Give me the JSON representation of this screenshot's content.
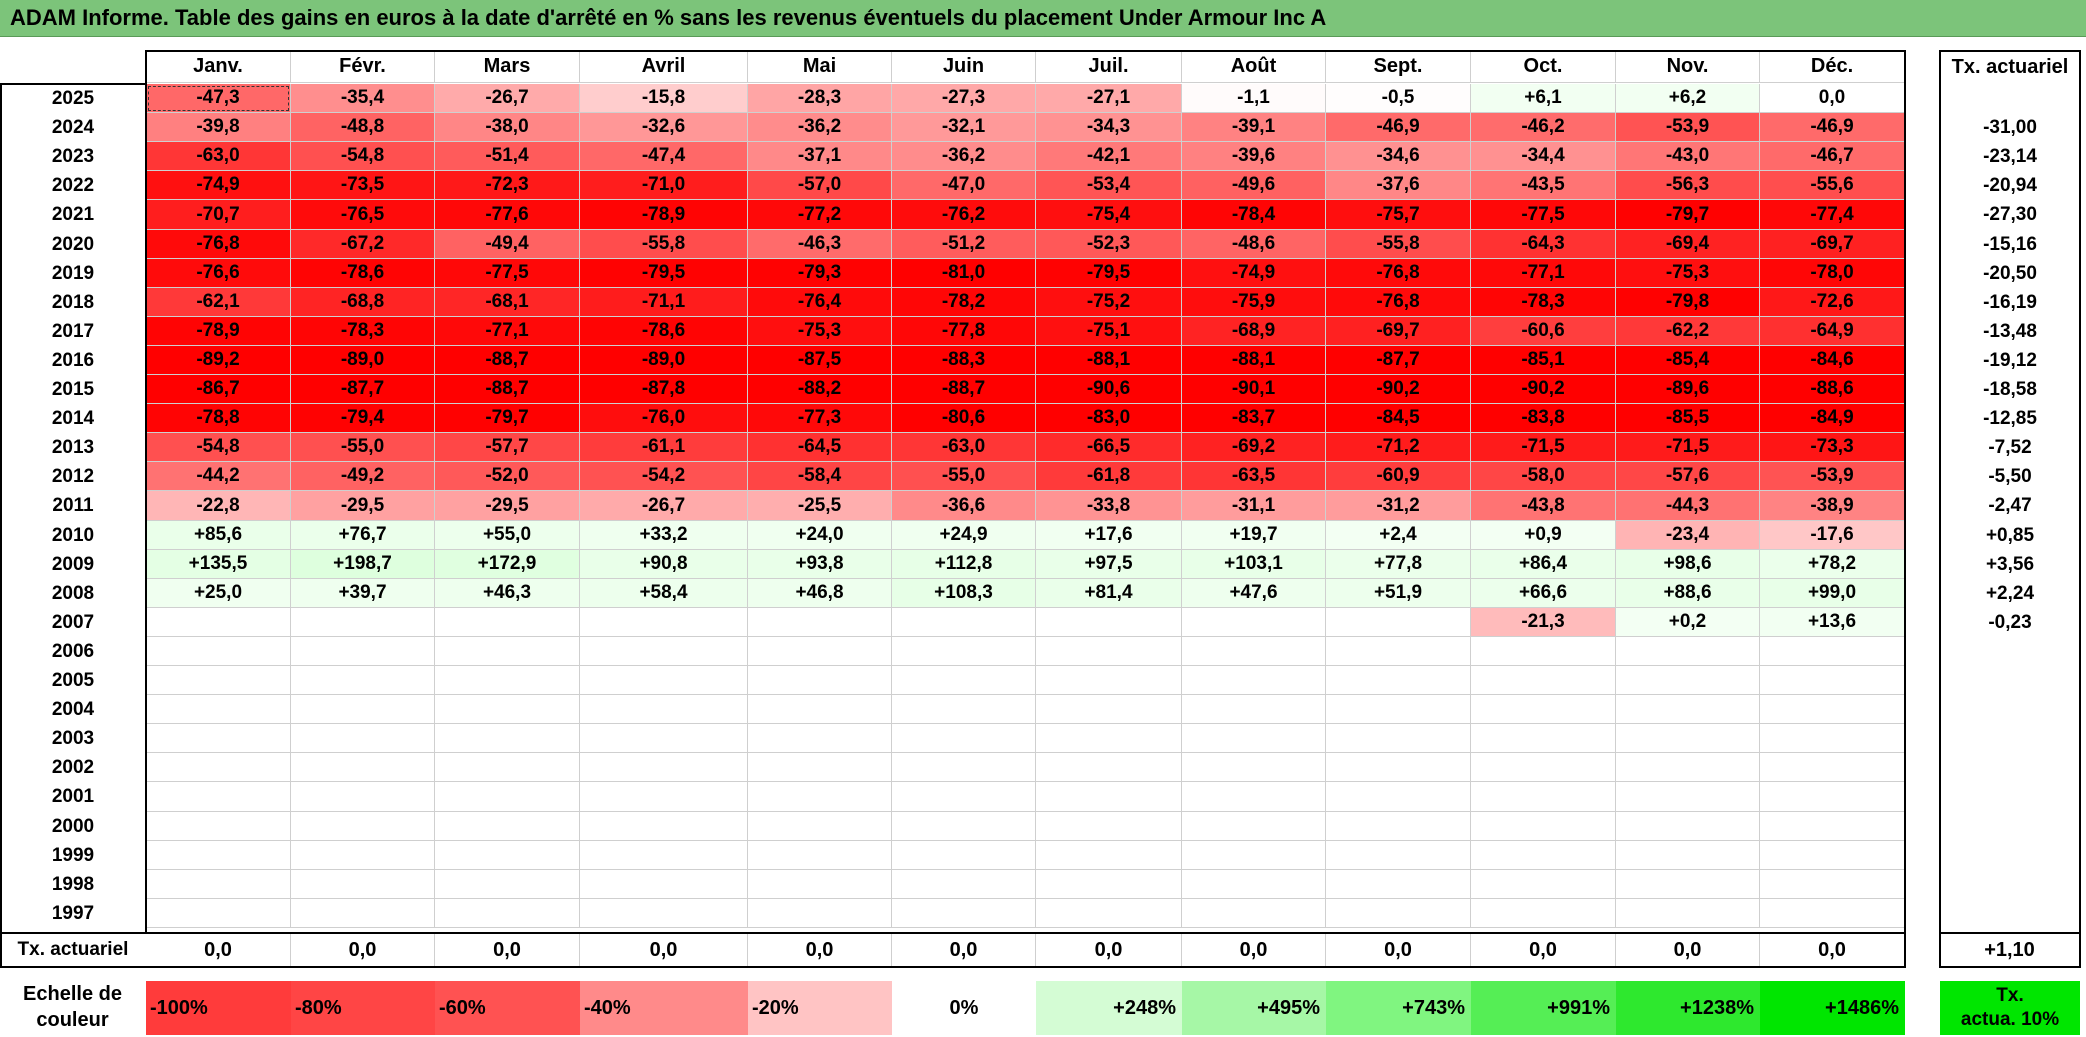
{
  "title": "ADAM Informe. Table des gains en euros à la date d'arrêté en % sans les revenus éventuels du placement Under Armour Inc A",
  "months": [
    "Janv.",
    "Févr.",
    "Mars",
    "Avril",
    "Mai",
    "Juin",
    "Juil.",
    "Août",
    "Sept.",
    "Oct.",
    "Nov.",
    "Déc."
  ],
  "rate_header": "Tx. actuariel",
  "rows": [
    {
      "year": "2025",
      "values": [
        "-47,3",
        "-35,4",
        "-26,7",
        "-15,8",
        "-28,3",
        "-27,3",
        "-27,1",
        "-1,1",
        "-0,5",
        "+6,1",
        "+6,2",
        "0,0"
      ],
      "rate": ""
    },
    {
      "year": "2024",
      "values": [
        "-39,8",
        "-48,8",
        "-38,0",
        "-32,6",
        "-36,2",
        "-32,1",
        "-34,3",
        "-39,1",
        "-46,9",
        "-46,2",
        "-53,9",
        "-46,9"
      ],
      "rate": "-31,00"
    },
    {
      "year": "2023",
      "values": [
        "-63,0",
        "-54,8",
        "-51,4",
        "-47,4",
        "-37,1",
        "-36,2",
        "-42,1",
        "-39,6",
        "-34,6",
        "-34,4",
        "-43,0",
        "-46,7"
      ],
      "rate": "-23,14"
    },
    {
      "year": "2022",
      "values": [
        "-74,9",
        "-73,5",
        "-72,3",
        "-71,0",
        "-57,0",
        "-47,0",
        "-53,4",
        "-49,6",
        "-37,6",
        "-43,5",
        "-56,3",
        "-55,6"
      ],
      "rate": "-20,94"
    },
    {
      "year": "2021",
      "values": [
        "-70,7",
        "-76,5",
        "-77,6",
        "-78,9",
        "-77,2",
        "-76,2",
        "-75,4",
        "-78,4",
        "-75,7",
        "-77,5",
        "-79,7",
        "-77,4"
      ],
      "rate": "-27,30"
    },
    {
      "year": "2020",
      "values": [
        "-76,8",
        "-67,2",
        "-49,4",
        "-55,8",
        "-46,3",
        "-51,2",
        "-52,3",
        "-48,6",
        "-55,8",
        "-64,3",
        "-69,4",
        "-69,7"
      ],
      "rate": "-15,16"
    },
    {
      "year": "2019",
      "values": [
        "-76,6",
        "-78,6",
        "-77,5",
        "-79,5",
        "-79,3",
        "-81,0",
        "-79,5",
        "-74,9",
        "-76,8",
        "-77,1",
        "-75,3",
        "-78,0"
      ],
      "rate": "-20,50"
    },
    {
      "year": "2018",
      "values": [
        "-62,1",
        "-68,8",
        "-68,1",
        "-71,1",
        "-76,4",
        "-78,2",
        "-75,2",
        "-75,9",
        "-76,8",
        "-78,3",
        "-79,8",
        "-72,6"
      ],
      "rate": "-16,19"
    },
    {
      "year": "2017",
      "values": [
        "-78,9",
        "-78,3",
        "-77,1",
        "-78,6",
        "-75,3",
        "-77,8",
        "-75,1",
        "-68,9",
        "-69,7",
        "-60,6",
        "-62,2",
        "-64,9"
      ],
      "rate": "-13,48"
    },
    {
      "year": "2016",
      "values": [
        "-89,2",
        "-89,0",
        "-88,7",
        "-89,0",
        "-87,5",
        "-88,3",
        "-88,1",
        "-88,1",
        "-87,7",
        "-85,1",
        "-85,4",
        "-84,6"
      ],
      "rate": "-19,12"
    },
    {
      "year": "2015",
      "values": [
        "-86,7",
        "-87,7",
        "-88,7",
        "-87,8",
        "-88,2",
        "-88,7",
        "-90,6",
        "-90,1",
        "-90,2",
        "-90,2",
        "-89,6",
        "-88,6"
      ],
      "rate": "-18,58"
    },
    {
      "year": "2014",
      "values": [
        "-78,8",
        "-79,4",
        "-79,7",
        "-76,0",
        "-77,3",
        "-80,6",
        "-83,0",
        "-83,7",
        "-84,5",
        "-83,8",
        "-85,5",
        "-84,9"
      ],
      "rate": "-12,85"
    },
    {
      "year": "2013",
      "values": [
        "-54,8",
        "-55,0",
        "-57,7",
        "-61,1",
        "-64,5",
        "-63,0",
        "-66,5",
        "-69,2",
        "-71,2",
        "-71,5",
        "-71,5",
        "-73,3"
      ],
      "rate": "-7,52"
    },
    {
      "year": "2012",
      "values": [
        "-44,2",
        "-49,2",
        "-52,0",
        "-54,2",
        "-58,4",
        "-55,0",
        "-61,8",
        "-63,5",
        "-60,9",
        "-58,0",
        "-57,6",
        "-53,9"
      ],
      "rate": "-5,50"
    },
    {
      "year": "2011",
      "values": [
        "-22,8",
        "-29,5",
        "-29,5",
        "-26,7",
        "-25,5",
        "-36,6",
        "-33,8",
        "-31,1",
        "-31,2",
        "-43,8",
        "-44,3",
        "-38,9"
      ],
      "rate": "-2,47"
    },
    {
      "year": "2010",
      "values": [
        "+85,6",
        "+76,7",
        "+55,0",
        "+33,2",
        "+24,0",
        "+24,9",
        "+17,6",
        "+19,7",
        "+2,4",
        "+0,9",
        "-23,4",
        "-17,6"
      ],
      "rate": "+0,85"
    },
    {
      "year": "2009",
      "values": [
        "+135,5",
        "+198,7",
        "+172,9",
        "+90,8",
        "+93,8",
        "+112,8",
        "+97,5",
        "+103,1",
        "+77,8",
        "+86,4",
        "+98,6",
        "+78,2"
      ],
      "rate": "+3,56"
    },
    {
      "year": "2008",
      "values": [
        "+25,0",
        "+39,7",
        "+46,3",
        "+58,4",
        "+46,8",
        "+108,3",
        "+81,4",
        "+47,6",
        "+51,9",
        "+66,6",
        "+88,6",
        "+99,0"
      ],
      "rate": "+2,24"
    },
    {
      "year": "2007",
      "values": [
        "",
        "",
        "",
        "",
        "",
        "",
        "",
        "",
        "",
        "-21,3",
        "+0,2",
        "+13,6"
      ],
      "rate": "-0,23"
    },
    {
      "year": "2006",
      "values": [
        "",
        "",
        "",
        "",
        "",
        "",
        "",
        "",
        "",
        "",
        "",
        ""
      ],
      "rate": ""
    },
    {
      "year": "2005",
      "values": [
        "",
        "",
        "",
        "",
        "",
        "",
        "",
        "",
        "",
        "",
        "",
        ""
      ],
      "rate": ""
    },
    {
      "year": "2004",
      "values": [
        "",
        "",
        "",
        "",
        "",
        "",
        "",
        "",
        "",
        "",
        "",
        ""
      ],
      "rate": ""
    },
    {
      "year": "2003",
      "values": [
        "",
        "",
        "",
        "",
        "",
        "",
        "",
        "",
        "",
        "",
        "",
        ""
      ],
      "rate": ""
    },
    {
      "year": "2002",
      "values": [
        "",
        "",
        "",
        "",
        "",
        "",
        "",
        "",
        "",
        "",
        "",
        ""
      ],
      "rate": ""
    },
    {
      "year": "2001",
      "values": [
        "",
        "",
        "",
        "",
        "",
        "",
        "",
        "",
        "",
        "",
        "",
        ""
      ],
      "rate": ""
    },
    {
      "year": "2000",
      "values": [
        "",
        "",
        "",
        "",
        "",
        "",
        "",
        "",
        "",
        "",
        "",
        ""
      ],
      "rate": ""
    },
    {
      "year": "1999",
      "values": [
        "",
        "",
        "",
        "",
        "",
        "",
        "",
        "",
        "",
        "",
        "",
        ""
      ],
      "rate": ""
    },
    {
      "year": "1998",
      "values": [
        "",
        "",
        "",
        "",
        "",
        "",
        "",
        "",
        "",
        "",
        "",
        ""
      ],
      "rate": ""
    },
    {
      "year": "1997",
      "values": [
        "",
        "",
        "",
        "",
        "",
        "",
        "",
        "",
        "",
        "",
        "",
        ""
      ],
      "rate": ""
    }
  ],
  "footer": {
    "label": "Tx. actuariel",
    "values": [
      "0,0",
      "0,0",
      "0,0",
      "0,0",
      "0,0",
      "0,0",
      "0,0",
      "0,0",
      "0,0",
      "0,0",
      "0,0",
      "0,0"
    ],
    "rate": "+1,10"
  },
  "scale": {
    "label_line1": "Echelle de",
    "label_line2": "couleur",
    "items": [
      {
        "text": "-100%",
        "color": "#ff3b3b"
      },
      {
        "text": "-80%",
        "color": "#ff4545"
      },
      {
        "text": "-60%",
        "color": "#ff5252"
      },
      {
        "text": "-40%",
        "color": "#ff8a8a"
      },
      {
        "text": "-20%",
        "color": "#ffc4c4"
      },
      {
        "text": "0%",
        "color": "#ffffff"
      },
      {
        "text": "+248%",
        "color": "#d4fcd4"
      },
      {
        "text": "+495%",
        "color": "#a6f7a6"
      },
      {
        "text": "+743%",
        "color": "#80f580"
      },
      {
        "text": "+991%",
        "color": "#55ee55"
      },
      {
        "text": "+1238%",
        "color": "#2ee82e"
      },
      {
        "text": "+1486%",
        "color": "#00e600"
      }
    ],
    "rate_line1": "Tx.",
    "rate_line2": "actua. 10%"
  }
}
